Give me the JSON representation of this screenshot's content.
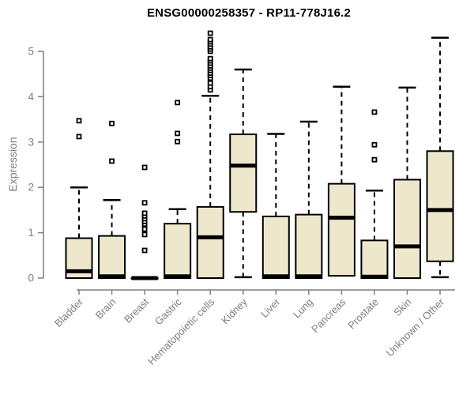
{
  "chart_data": {
    "type": "boxplot",
    "title": "ENSG00000258357 - RP11-778J16.2",
    "ylabel": "Expression",
    "xlabel": "",
    "ylim": [
      0,
      5.45
    ],
    "yticks": [
      0,
      1,
      2,
      3,
      4,
      5
    ],
    "grid": false,
    "legend": null,
    "colors": {
      "box_fill": "#ede8cc",
      "box_stroke": "#000000",
      "median": "#000000",
      "whisker": "#000000",
      "outlier_fill": "#ffffff",
      "outlier_stroke": "#000000",
      "axis": "#7e7e7e",
      "tick_label": "#7e7e7e",
      "title": "#000000"
    },
    "boxes": [
      {
        "label": "Bladder",
        "whisker_low": 0,
        "q1": 0,
        "median": 0.15,
        "q3": 0.88,
        "whisker_high": 2.0,
        "outliers": [
          3.12,
          3.47
        ]
      },
      {
        "label": "Brain",
        "whisker_low": 0,
        "q1": 0,
        "median": 0.04,
        "q3": 0.93,
        "whisker_high": 1.72,
        "outliers": [
          2.58,
          3.41
        ]
      },
      {
        "label": "Breast",
        "whisker_low": 0,
        "q1": 0,
        "median": 0,
        "q3": 0,
        "whisker_high": 0,
        "outliers": [
          0.61,
          0.96,
          1.08,
          1.19,
          1.25,
          1.31,
          1.37,
          1.43,
          1.66,
          2.44
        ]
      },
      {
        "label": "Gastric",
        "whisker_low": 0,
        "q1": 0,
        "median": 0.04,
        "q3": 1.2,
        "whisker_high": 1.52,
        "outliers": [
          3.01,
          3.19,
          3.87
        ]
      },
      {
        "label": "Hematopoietic cells",
        "whisker_low": 0,
        "q1": 0,
        "median": 0.9,
        "q3": 1.57,
        "whisker_high": 4.02,
        "outliers": [
          4.15,
          4.22,
          4.3,
          4.41,
          4.47,
          4.52,
          4.58,
          4.63,
          4.68,
          4.74,
          4.79,
          4.84,
          5.0,
          5.05,
          5.1,
          5.16,
          5.21,
          5.26,
          5.4
        ]
      },
      {
        "label": "Kidney",
        "whisker_low": 0.02,
        "q1": 1.46,
        "median": 2.48,
        "q3": 3.17,
        "whisker_high": 4.6,
        "outliers": []
      },
      {
        "label": "Liver",
        "whisker_low": 0,
        "q1": 0,
        "median": 0.04,
        "q3": 1.36,
        "whisker_high": 3.18,
        "outliers": []
      },
      {
        "label": "Lung",
        "whisker_low": 0,
        "q1": 0,
        "median": 0.04,
        "q3": 1.4,
        "whisker_high": 3.45,
        "outliers": []
      },
      {
        "label": "Pancreas",
        "whisker_low": 0.05,
        "q1": 0.05,
        "median": 1.33,
        "q3": 2.08,
        "whisker_high": 4.22,
        "outliers": []
      },
      {
        "label": "Prostate",
        "whisker_low": 0,
        "q1": 0,
        "median": 0.03,
        "q3": 0.83,
        "whisker_high": 1.93,
        "outliers": [
          2.61,
          2.94,
          3.66
        ]
      },
      {
        "label": "Skin",
        "whisker_low": 0,
        "q1": 0,
        "median": 0.7,
        "q3": 2.17,
        "whisker_high": 4.2,
        "outliers": []
      },
      {
        "label": "Unknown / Other",
        "whisker_low": 0.02,
        "q1": 0.37,
        "median": 1.5,
        "q3": 2.8,
        "whisker_high": 5.3,
        "outliers": []
      }
    ]
  }
}
